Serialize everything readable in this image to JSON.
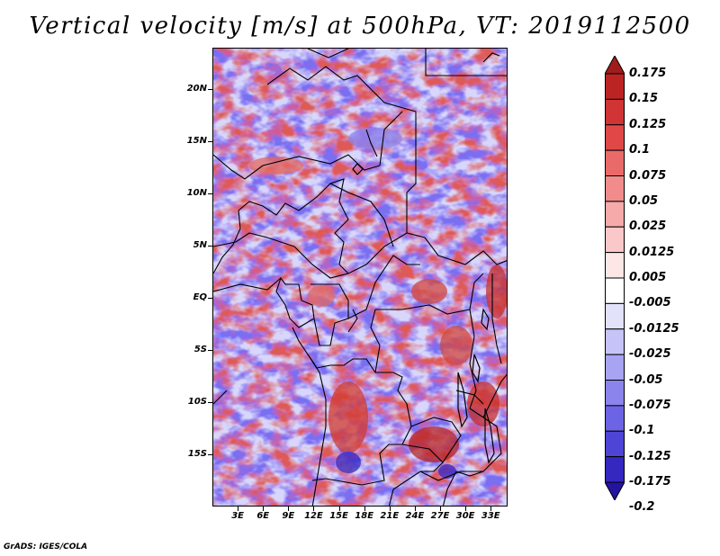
{
  "title": "Vertical velocity [m/s] at 500hPa, VT: 2019112500",
  "footer": "GrADS: IGES/COLA",
  "map": {
    "lat_labels": [
      "20N",
      "15N",
      "10N",
      "5N",
      "EQ",
      "5S",
      "10S",
      "15S"
    ],
    "lon_labels": [
      "3E",
      "6E",
      "9E",
      "12E",
      "15E",
      "18E",
      "21E",
      "24E",
      "27E",
      "30E",
      "33E"
    ],
    "lat_range": [
      -20,
      24
    ],
    "lon_range": [
      0,
      35
    ],
    "field": "vertical velocity at 500hPa",
    "colors": {
      "negative": "#6a5cf0",
      "positive": "#e0443a",
      "land_boundary": "#000000"
    }
  },
  "colorbar": {
    "labels": [
      "0.175",
      "0.15",
      "0.125",
      "0.1",
      "0.075",
      "0.05",
      "0.025",
      "0.0125",
      "0.005",
      "-0.005",
      "-0.0125",
      "-0.025",
      "-0.05",
      "-0.075",
      "-0.1",
      "-0.125",
      "-0.175",
      "-0.2"
    ],
    "colors": [
      "#a01c1c",
      "#bc2424",
      "#d03434",
      "#e04848",
      "#ea6a6a",
      "#f28c8c",
      "#f6aaaa",
      "#fac8c8",
      "#fde6e6",
      "#ffffff",
      "#e2e2fb",
      "#c6c4f7",
      "#a8a4f2",
      "#8a84ec",
      "#6c64e4",
      "#4e44d6",
      "#3428c0",
      "#2412a0"
    ]
  }
}
